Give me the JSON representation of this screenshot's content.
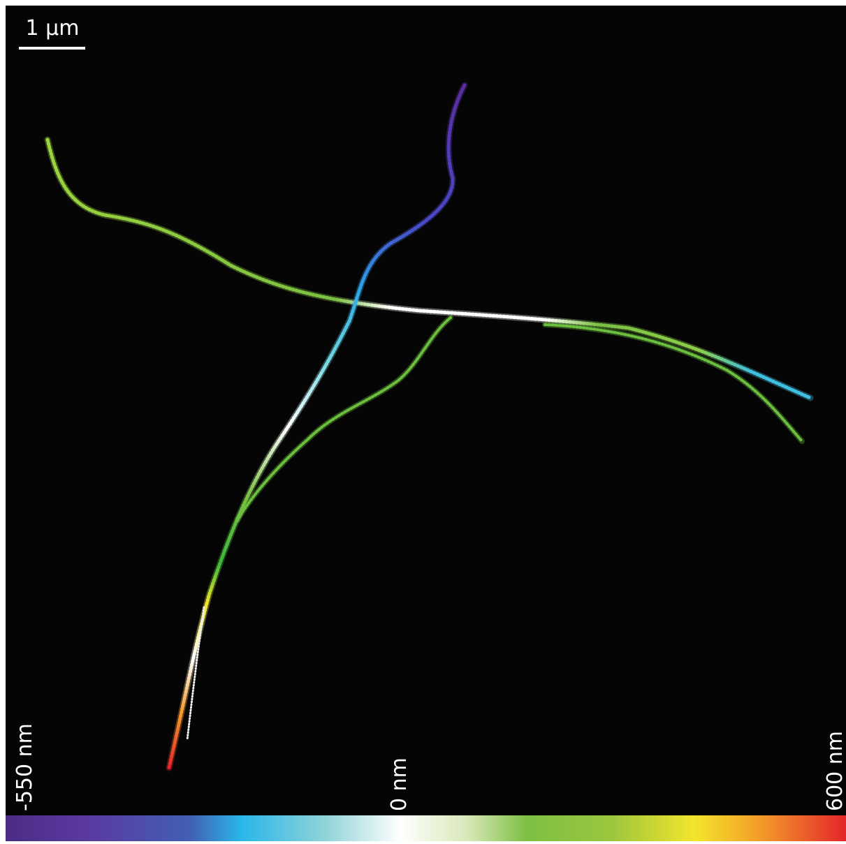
{
  "scale_bar": {
    "label": "1 µm"
  },
  "colorbar": {
    "labels": [
      "-550 nm",
      "0 nm",
      "600 nm"
    ]
  }
}
